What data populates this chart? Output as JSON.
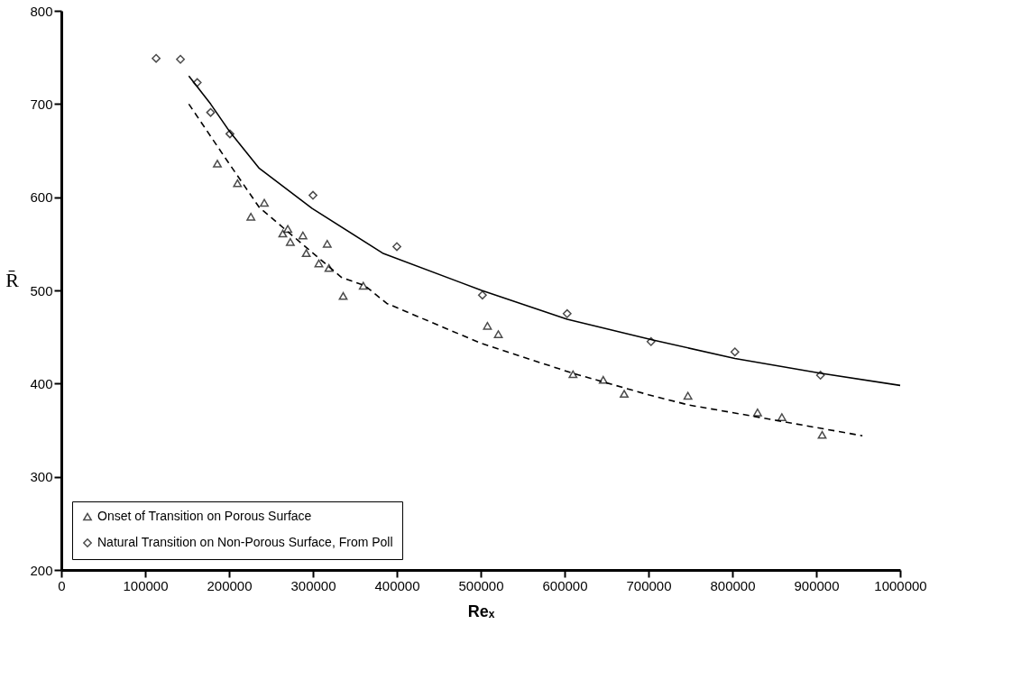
{
  "chart_data": {
    "type": "scatter",
    "xlabel": "Reₓ",
    "ylabel": "R̄",
    "xlim": [
      0,
      1000000
    ],
    "ylim": [
      200,
      800
    ],
    "xticks": [
      0,
      100000,
      200000,
      300000,
      400000,
      500000,
      600000,
      700000,
      800000,
      900000,
      1000000
    ],
    "yticks": [
      200,
      300,
      400,
      500,
      600,
      700,
      800
    ],
    "grid": false,
    "legend": "bottom left",
    "series": [
      {
        "name": "Onset of Transition on Porous Surface",
        "marker": "triangle",
        "color": "#000000",
        "x": [
          186000,
          210000,
          226000,
          242000,
          264000,
          270000,
          273000,
          288000,
          292000,
          307000,
          317000,
          319000,
          336000,
          360000,
          508000,
          521000,
          610000,
          646000,
          671000,
          747000,
          830000,
          859000,
          907000
        ],
        "values": [
          636,
          615,
          579,
          594,
          561,
          566,
          552,
          559,
          540,
          529,
          550,
          524,
          494,
          505,
          462,
          453,
          410,
          404,
          389,
          387,
          369,
          364,
          345
        ]
      },
      {
        "name": "Natural Transition on Non-Porous Surface, From Poll",
        "marker": "diamond",
        "color": "#000000",
        "x": [
          113000,
          142000,
          162000,
          178000,
          201000,
          300000,
          400000,
          502000,
          603000,
          703000,
          803000,
          905000
        ],
        "values": [
          749,
          748,
          723,
          691,
          668,
          602,
          547,
          495,
          475,
          445,
          434,
          409
        ]
      },
      {
        "type": "line",
        "marker": "none",
        "line_style": "solid",
        "color": "#000000",
        "x": [
          152000,
          178000,
          201000,
          236000,
          299000,
          383000,
          501000,
          603000,
          704000,
          803000,
          906000,
          1000000
        ],
        "values": [
          730,
          700,
          670,
          631,
          588,
          540,
          500,
          469,
          447,
          427,
          411,
          398
        ]
      },
      {
        "type": "line",
        "marker": "none",
        "line_style": "dashed",
        "color": "#000000",
        "x": [
          152000,
          194000,
          236000,
          334000,
          362000,
          388000,
          501000,
          610000,
          700000,
          748000,
          812000,
          955000
        ],
        "values": [
          700,
          644,
          589,
          514,
          505,
          486,
          443,
          411,
          388,
          377,
          367,
          344
        ]
      }
    ]
  }
}
